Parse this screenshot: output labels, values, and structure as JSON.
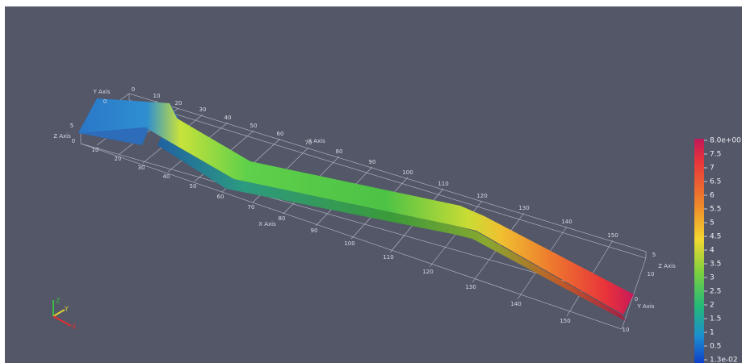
{
  "axes_box": {
    "top_x_label": "X Axis",
    "top_x_ticks": [
      "0",
      "10",
      "20",
      "30",
      "40",
      "50",
      "60",
      "70",
      "80",
      "90",
      "100",
      "110",
      "120",
      "130",
      "140",
      "150"
    ],
    "front_x_label": "X Axis",
    "front_ticks": [
      "10",
      "20",
      "30",
      "40",
      "50",
      "60",
      "70",
      "80",
      "90",
      "100",
      "110",
      "120",
      "130",
      "140",
      "150"
    ],
    "left_y_label": "Y Axis",
    "left_y_tick": "0",
    "left_z_label": "Z Axis",
    "left_z_ticks": [
      "5",
      "0"
    ],
    "right_z_label": "Z Axis",
    "right_z_ticks": [
      "5",
      "10"
    ],
    "right_y_label": "Y Axis",
    "right_y_ticks": [
      "0",
      "10"
    ]
  },
  "colorbar": {
    "labels": [
      "8.0e+00",
      "7.5",
      "7",
      "6.5",
      "6",
      "5.5",
      "5",
      "4.5",
      "4",
      "3.5",
      "3",
      "2.5",
      "2",
      "1.5",
      "1",
      "0.5",
      "1.3e-02"
    ]
  },
  "orientation": {
    "x": "X",
    "y": "Y",
    "z": "Z"
  }
}
